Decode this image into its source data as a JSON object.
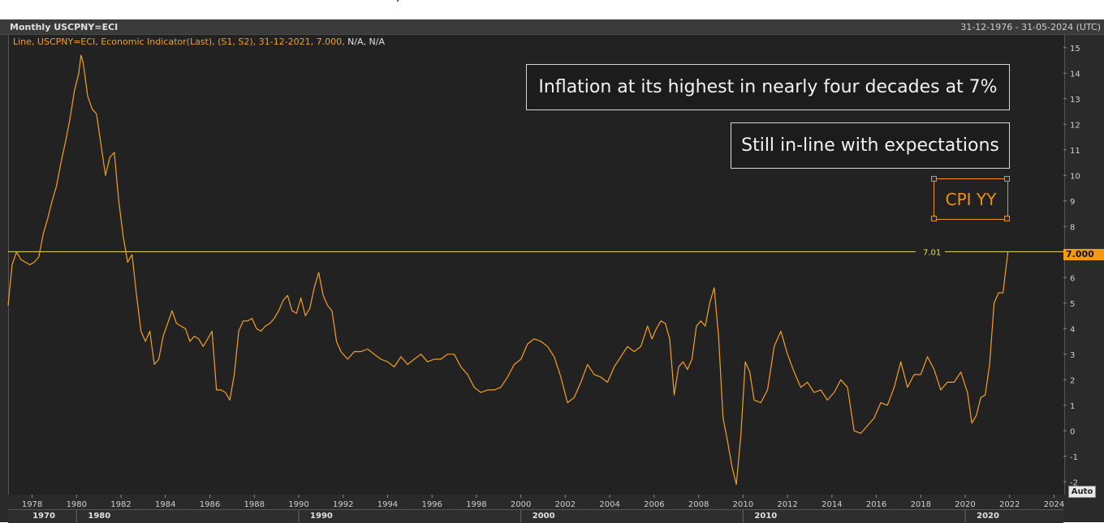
{
  "header": {
    "title": "Monthly USCPNY=ECI",
    "date_range": "31-12-1976 - 31-05-2024 (UTC)"
  },
  "legend": {
    "text": "Line, USCPNY=ECI, Economic Indicator(Last), (S1, S2), 31-12-2021, 7.000,",
    "na_text": "N/A, N/A"
  },
  "annotations": {
    "headline": "Inflation at its highest in nearly four decades at 7%",
    "subline": "Still in-line with expectations",
    "series_box": "CPI YY"
  },
  "price_tag": "7.000",
  "hline_label": "7.01",
  "auto_button": "Auto",
  "colors": {
    "series": "#f5a020",
    "hline": "#e8e040",
    "background": "#222222",
    "grid": "#333333"
  },
  "chart_data": {
    "type": "line",
    "series": [
      {
        "name": "USCPNY=ECI",
        "x": [
          1976.92,
          1977.1,
          1977.3,
          1977.5,
          1977.7,
          1977.9,
          1978.1,
          1978.3,
          1978.5,
          1978.7,
          1978.9,
          1979.1,
          1979.3,
          1979.5,
          1979.7,
          1979.9,
          1980.1,
          1980.2,
          1980.3,
          1980.5,
          1980.7,
          1980.9,
          1981.1,
          1981.3,
          1981.5,
          1981.7,
          1981.9,
          1982.1,
          1982.3,
          1982.5,
          1982.7,
          1982.9,
          1983.1,
          1983.3,
          1983.5,
          1983.7,
          1983.9,
          1984.1,
          1984.3,
          1984.5,
          1984.7,
          1984.9,
          1985.1,
          1985.3,
          1985.5,
          1985.7,
          1985.9,
          1986.1,
          1986.3,
          1986.5,
          1986.7,
          1986.9,
          1987.1,
          1987.3,
          1987.5,
          1987.7,
          1987.9,
          1988.1,
          1988.3,
          1988.5,
          1988.7,
          1988.9,
          1989.1,
          1989.3,
          1989.5,
          1989.7,
          1989.9,
          1990.1,
          1990.3,
          1990.5,
          1990.7,
          1990.9,
          1991.1,
          1991.3,
          1991.5,
          1991.7,
          1991.9,
          1992.2,
          1992.5,
          1992.8,
          1993.1,
          1993.4,
          1993.7,
          1994.0,
          1994.3,
          1994.6,
          1994.9,
          1995.2,
          1995.5,
          1995.8,
          1996.1,
          1996.4,
          1996.7,
          1997.0,
          1997.3,
          1997.6,
          1997.9,
          1998.2,
          1998.5,
          1998.8,
          1999.1,
          1999.4,
          1999.7,
          2000.0,
          2000.3,
          2000.6,
          2000.9,
          2001.2,
          2001.5,
          2001.8,
          2002.1,
          2002.4,
          2002.7,
          2003.0,
          2003.3,
          2003.6,
          2003.9,
          2004.2,
          2004.5,
          2004.8,
          2005.1,
          2005.4,
          2005.7,
          2005.9,
          2006.1,
          2006.3,
          2006.5,
          2006.7,
          2006.9,
          2007.1,
          2007.3,
          2007.5,
          2007.7,
          2007.9,
          2008.1,
          2008.3,
          2008.5,
          2008.7,
          2008.9,
          2009.1,
          2009.3,
          2009.5,
          2009.7,
          2009.9,
          2010.1,
          2010.3,
          2010.5,
          2010.8,
          2011.1,
          2011.4,
          2011.7,
          2012.0,
          2012.3,
          2012.6,
          2012.9,
          2013.2,
          2013.5,
          2013.8,
          2014.1,
          2014.4,
          2014.7,
          2015.0,
          2015.3,
          2015.6,
          2015.9,
          2016.2,
          2016.5,
          2016.8,
          2017.1,
          2017.4,
          2017.7,
          2018.0,
          2018.3,
          2018.6,
          2018.9,
          2019.2,
          2019.5,
          2019.8,
          2020.1,
          2020.3,
          2020.5,
          2020.7,
          2020.9,
          2021.1,
          2021.3,
          2021.5,
          2021.7,
          2021.92
        ],
        "y": [
          4.9,
          6.5,
          7.0,
          6.7,
          6.6,
          6.5,
          6.6,
          6.8,
          7.7,
          8.3,
          9.0,
          9.6,
          10.5,
          11.3,
          12.2,
          13.3,
          14.0,
          14.7,
          14.4,
          13.1,
          12.6,
          12.4,
          11.2,
          10.0,
          10.7,
          10.9,
          9.0,
          7.6,
          6.6,
          6.9,
          5.3,
          3.9,
          3.5,
          3.9,
          2.6,
          2.8,
          3.7,
          4.2,
          4.7,
          4.2,
          4.1,
          4.0,
          3.5,
          3.7,
          3.6,
          3.3,
          3.6,
          3.9,
          1.6,
          1.6,
          1.5,
          1.2,
          2.2,
          3.9,
          4.3,
          4.3,
          4.4,
          4.0,
          3.9,
          4.1,
          4.2,
          4.4,
          4.7,
          5.1,
          5.3,
          4.7,
          4.6,
          5.2,
          4.5,
          4.8,
          5.6,
          6.2,
          5.3,
          4.9,
          4.7,
          3.5,
          3.1,
          2.8,
          3.1,
          3.1,
          3.2,
          3.0,
          2.8,
          2.7,
          2.5,
          2.9,
          2.6,
          2.8,
          3.0,
          2.7,
          2.8,
          2.8,
          3.0,
          3.0,
          2.5,
          2.2,
          1.7,
          1.5,
          1.6,
          1.6,
          1.7,
          2.1,
          2.6,
          2.8,
          3.4,
          3.6,
          3.5,
          3.3,
          2.9,
          2.1,
          1.1,
          1.3,
          1.9,
          2.6,
          2.2,
          2.1,
          1.9,
          2.5,
          2.9,
          3.3,
          3.1,
          3.3,
          4.1,
          3.6,
          4.0,
          4.3,
          4.2,
          3.6,
          1.4,
          2.5,
          2.7,
          2.4,
          2.8,
          4.1,
          4.3,
          4.1,
          5.0,
          5.6,
          3.7,
          0.5,
          -0.4,
          -1.4,
          -2.1,
          -0.2,
          2.7,
          2.3,
          1.2,
          1.1,
          1.6,
          3.3,
          3.9,
          3.0,
          2.3,
          1.7,
          1.9,
          1.5,
          1.6,
          1.2,
          1.5,
          2.0,
          1.7,
          0.0,
          -0.1,
          0.2,
          0.5,
          1.1,
          1.0,
          1.7,
          2.7,
          1.7,
          2.2,
          2.2,
          2.9,
          2.4,
          1.6,
          1.9,
          1.9,
          2.3,
          1.5,
          0.3,
          0.6,
          1.3,
          1.4,
          2.6,
          5.0,
          5.4,
          5.4,
          7.0
        ]
      }
    ],
    "xlim": [
      1976.92,
      2024.42
    ],
    "ylim": [
      -2.5,
      15.5
    ],
    "yticks": [
      -2,
      -1,
      0,
      1,
      2,
      3,
      4,
      5,
      6,
      7,
      8,
      9,
      10,
      11,
      12,
      13,
      14,
      15
    ],
    "xticks": [
      1978,
      1980,
      1982,
      1984,
      1986,
      1988,
      1990,
      1992,
      1994,
      1996,
      1998,
      2000,
      2002,
      2004,
      2006,
      2008,
      2010,
      2012,
      2014,
      2016,
      2018,
      2020,
      2022,
      2024
    ],
    "decade_labels": [
      "1970",
      "1980",
      "1990",
      "2000",
      "2010",
      "2020"
    ],
    "reference_line": 7.01,
    "last_value": 7.0,
    "grid": false,
    "title": "",
    "xlabel": "",
    "ylabel": ""
  }
}
